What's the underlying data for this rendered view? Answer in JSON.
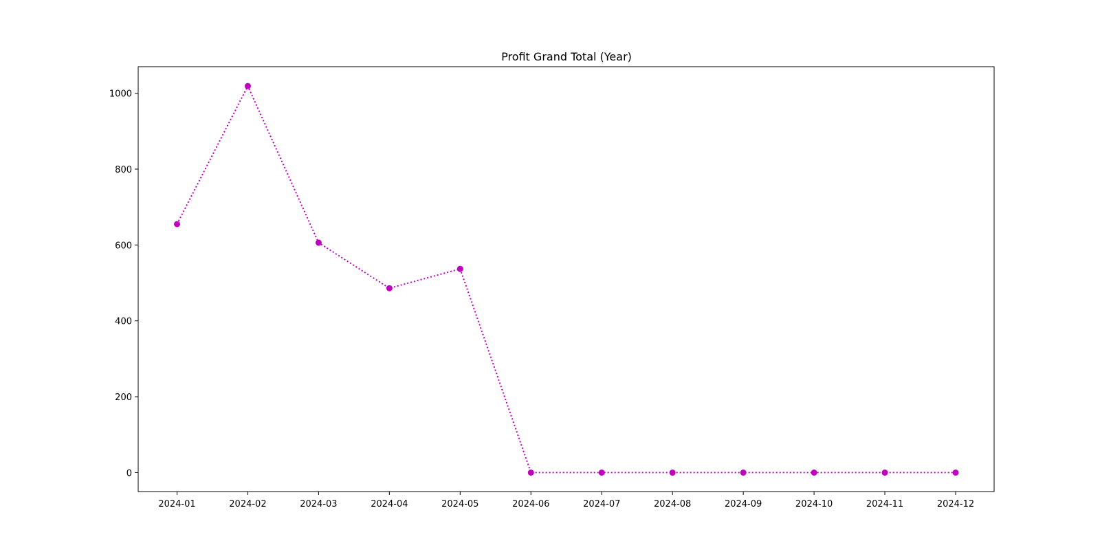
{
  "chart_data": {
    "type": "line",
    "title": "Profit Grand Total (Year)",
    "xlabel": "",
    "ylabel": "",
    "categories": [
      "2024-01",
      "2024-02",
      "2024-03",
      "2024-04",
      "2024-05",
      "2024-06",
      "2024-07",
      "2024-08",
      "2024-09",
      "2024-10",
      "2024-11",
      "2024-12"
    ],
    "series": [
      {
        "values": [
          655,
          1019,
          606,
          486,
          537,
          0,
          0,
          0,
          0,
          0,
          0,
          0
        ],
        "color": "#bf00bf",
        "line_style": "dotted",
        "marker": "circle"
      }
    ],
    "ylim": [
      -50,
      1070
    ],
    "yticks": [
      0,
      200,
      400,
      600,
      800,
      1000
    ],
    "grid": false,
    "legend": "none"
  }
}
